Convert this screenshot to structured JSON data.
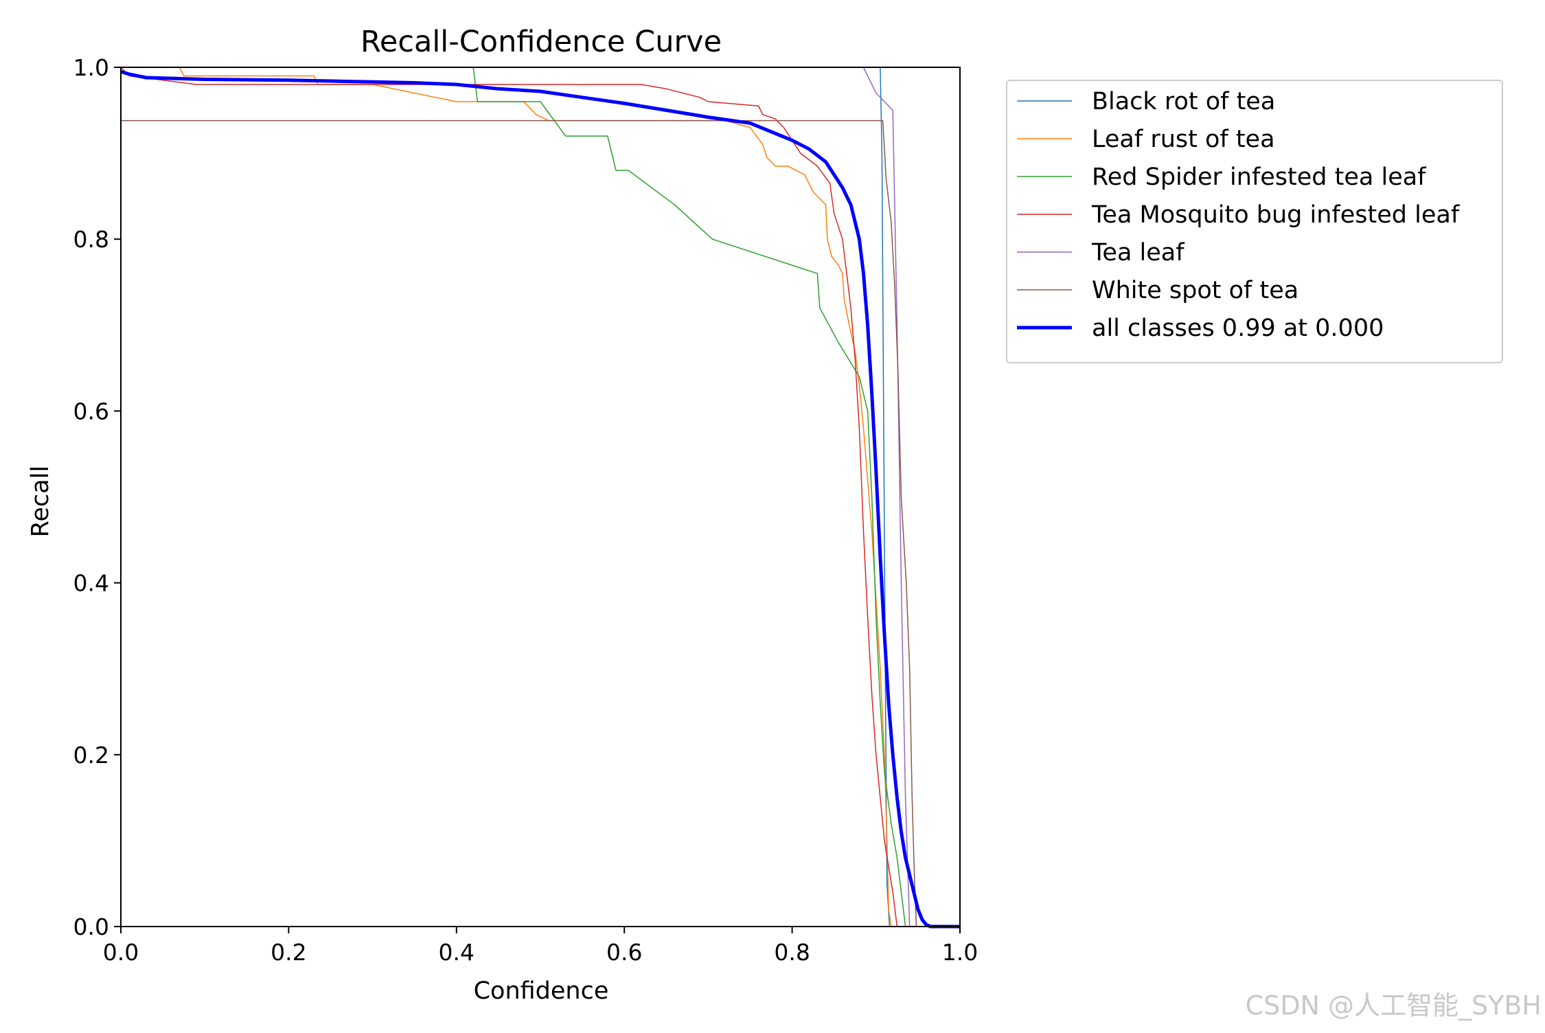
{
  "chart_data": {
    "type": "line",
    "title": "Recall-Confidence Curve",
    "xlabel": "Confidence",
    "ylabel": "Recall",
    "xlim": [
      0.0,
      1.0
    ],
    "ylim": [
      0.0,
      1.0
    ],
    "x_ticks": [
      "0.0",
      "0.2",
      "0.4",
      "0.6",
      "0.8",
      "1.0"
    ],
    "y_ticks": [
      "0.0",
      "0.2",
      "0.4",
      "0.6",
      "0.8",
      "1.0"
    ],
    "grid": false,
    "legend_position": "outside-right-top",
    "series": [
      {
        "name": "Black rot of tea",
        "color": "#1f77b4",
        "width": 1.5,
        "points": [
          [
            0.905,
            1.0
          ],
          [
            0.907,
            0.9
          ],
          [
            0.909,
            0.6
          ],
          [
            0.911,
            0.3
          ],
          [
            0.913,
            0.05
          ],
          [
            0.916,
            0.0
          ],
          [
            1.0,
            0.0
          ]
        ]
      },
      {
        "name": "Leaf rust of tea",
        "color": "#ff7f0e",
        "width": 1.5,
        "points": [
          [
            0.0,
            1.0
          ],
          [
            0.07,
            1.0
          ],
          [
            0.075,
            0.99
          ],
          [
            0.23,
            0.99
          ],
          [
            0.235,
            0.98
          ],
          [
            0.3,
            0.98
          ],
          [
            0.4,
            0.96
          ],
          [
            0.48,
            0.96
          ],
          [
            0.495,
            0.945
          ],
          [
            0.51,
            0.938
          ],
          [
            0.72,
            0.938
          ],
          [
            0.75,
            0.93
          ],
          [
            0.765,
            0.91
          ],
          [
            0.77,
            0.895
          ],
          [
            0.78,
            0.885
          ],
          [
            0.795,
            0.885
          ],
          [
            0.815,
            0.875
          ],
          [
            0.82,
            0.865
          ],
          [
            0.825,
            0.855
          ],
          [
            0.835,
            0.845
          ],
          [
            0.84,
            0.84
          ],
          [
            0.842,
            0.8
          ],
          [
            0.847,
            0.78
          ],
          [
            0.855,
            0.77
          ],
          [
            0.86,
            0.76
          ],
          [
            0.862,
            0.73
          ],
          [
            0.868,
            0.7
          ],
          [
            0.875,
            0.67
          ],
          [
            0.88,
            0.63
          ],
          [
            0.885,
            0.58
          ],
          [
            0.89,
            0.52
          ],
          [
            0.895,
            0.46
          ],
          [
            0.9,
            0.38
          ],
          [
            0.905,
            0.3
          ],
          [
            0.91,
            0.2
          ],
          [
            0.913,
            0.1
          ],
          [
            0.915,
            0.02
          ],
          [
            0.918,
            0.0
          ],
          [
            1.0,
            0.0
          ]
        ]
      },
      {
        "name": "Red Spider infested tea leaf",
        "color": "#2ca02c",
        "width": 1.5,
        "points": [
          [
            0.42,
            1.0
          ],
          [
            0.425,
            0.96
          ],
          [
            0.5,
            0.96
          ],
          [
            0.53,
            0.92
          ],
          [
            0.58,
            0.92
          ],
          [
            0.59,
            0.88
          ],
          [
            0.605,
            0.88
          ],
          [
            0.66,
            0.84
          ],
          [
            0.705,
            0.8
          ],
          [
            0.83,
            0.76
          ],
          [
            0.833,
            0.72
          ],
          [
            0.855,
            0.68
          ],
          [
            0.88,
            0.64
          ],
          [
            0.89,
            0.6
          ],
          [
            0.895,
            0.5
          ],
          [
            0.9,
            0.36
          ],
          [
            0.905,
            0.26
          ],
          [
            0.91,
            0.18
          ],
          [
            0.918,
            0.12
          ],
          [
            0.925,
            0.08
          ],
          [
            0.93,
            0.04
          ],
          [
            0.935,
            0.0
          ],
          [
            1.0,
            0.0
          ]
        ]
      },
      {
        "name": "Tea Mosquito bug infested leaf",
        "color": "#d62728",
        "width": 1.5,
        "points": [
          [
            0.0,
            1.0
          ],
          [
            0.01,
            0.99
          ],
          [
            0.09,
            0.98
          ],
          [
            0.42,
            0.98
          ],
          [
            0.62,
            0.98
          ],
          [
            0.65,
            0.975
          ],
          [
            0.69,
            0.965
          ],
          [
            0.7,
            0.96
          ],
          [
            0.76,
            0.955
          ],
          [
            0.765,
            0.945
          ],
          [
            0.78,
            0.94
          ],
          [
            0.79,
            0.93
          ],
          [
            0.8,
            0.915
          ],
          [
            0.81,
            0.9
          ],
          [
            0.83,
            0.885
          ],
          [
            0.845,
            0.865
          ],
          [
            0.85,
            0.83
          ],
          [
            0.86,
            0.8
          ],
          [
            0.865,
            0.76
          ],
          [
            0.87,
            0.72
          ],
          [
            0.875,
            0.66
          ],
          [
            0.88,
            0.58
          ],
          [
            0.885,
            0.46
          ],
          [
            0.89,
            0.36
          ],
          [
            0.895,
            0.27
          ],
          [
            0.9,
            0.2
          ],
          [
            0.905,
            0.15
          ],
          [
            0.91,
            0.1
          ],
          [
            0.915,
            0.07
          ],
          [
            0.92,
            0.04
          ],
          [
            0.925,
            0.0
          ],
          [
            1.0,
            0.0
          ]
        ]
      },
      {
        "name": "Tea leaf",
        "color": "#9467bd",
        "width": 1.5,
        "points": [
          [
            0.885,
            1.0
          ],
          [
            0.9,
            0.97
          ],
          [
            0.92,
            0.95
          ],
          [
            0.925,
            0.7
          ],
          [
            0.93,
            0.4
          ],
          [
            0.935,
            0.15
          ],
          [
            0.94,
            0.0
          ],
          [
            1.0,
            0.0
          ]
        ]
      },
      {
        "name": "White spot of tea",
        "color": "#8c564b",
        "width": 1.5,
        "points": [
          [
            0.0,
            0.938
          ],
          [
            0.908,
            0.938
          ],
          [
            0.912,
            0.87
          ],
          [
            0.918,
            0.82
          ],
          [
            0.922,
            0.75
          ],
          [
            0.926,
            0.65
          ],
          [
            0.93,
            0.5
          ],
          [
            0.933,
            0.45
          ],
          [
            0.936,
            0.4
          ],
          [
            0.94,
            0.3
          ],
          [
            0.943,
            0.15
          ],
          [
            0.946,
            0.05
          ],
          [
            0.948,
            0.0
          ],
          [
            1.0,
            0.0
          ]
        ]
      },
      {
        "name": "all classes 0.99 at 0.000",
        "color": "#0000ff",
        "width": 5,
        "points": [
          [
            0.0,
            0.995
          ],
          [
            0.01,
            0.992
          ],
          [
            0.03,
            0.988
          ],
          [
            0.1,
            0.986
          ],
          [
            0.2,
            0.985
          ],
          [
            0.25,
            0.984
          ],
          [
            0.3,
            0.983
          ],
          [
            0.35,
            0.982
          ],
          [
            0.4,
            0.98
          ],
          [
            0.45,
            0.975
          ],
          [
            0.5,
            0.972
          ],
          [
            0.55,
            0.965
          ],
          [
            0.6,
            0.958
          ],
          [
            0.65,
            0.95
          ],
          [
            0.7,
            0.942
          ],
          [
            0.75,
            0.935
          ],
          [
            0.8,
            0.915
          ],
          [
            0.82,
            0.905
          ],
          [
            0.84,
            0.89
          ],
          [
            0.86,
            0.86
          ],
          [
            0.87,
            0.84
          ],
          [
            0.88,
            0.8
          ],
          [
            0.885,
            0.76
          ],
          [
            0.89,
            0.7
          ],
          [
            0.895,
            0.62
          ],
          [
            0.9,
            0.53
          ],
          [
            0.905,
            0.43
          ],
          [
            0.91,
            0.34
          ],
          [
            0.915,
            0.26
          ],
          [
            0.92,
            0.2
          ],
          [
            0.925,
            0.15
          ],
          [
            0.93,
            0.11
          ],
          [
            0.935,
            0.08
          ],
          [
            0.94,
            0.06
          ],
          [
            0.945,
            0.04
          ],
          [
            0.95,
            0.02
          ],
          [
            0.955,
            0.008
          ],
          [
            0.96,
            0.002
          ],
          [
            0.965,
            0.0
          ],
          [
            1.0,
            0.0
          ]
        ]
      }
    ]
  },
  "watermark": "CSDN @人工智能_SYBH"
}
